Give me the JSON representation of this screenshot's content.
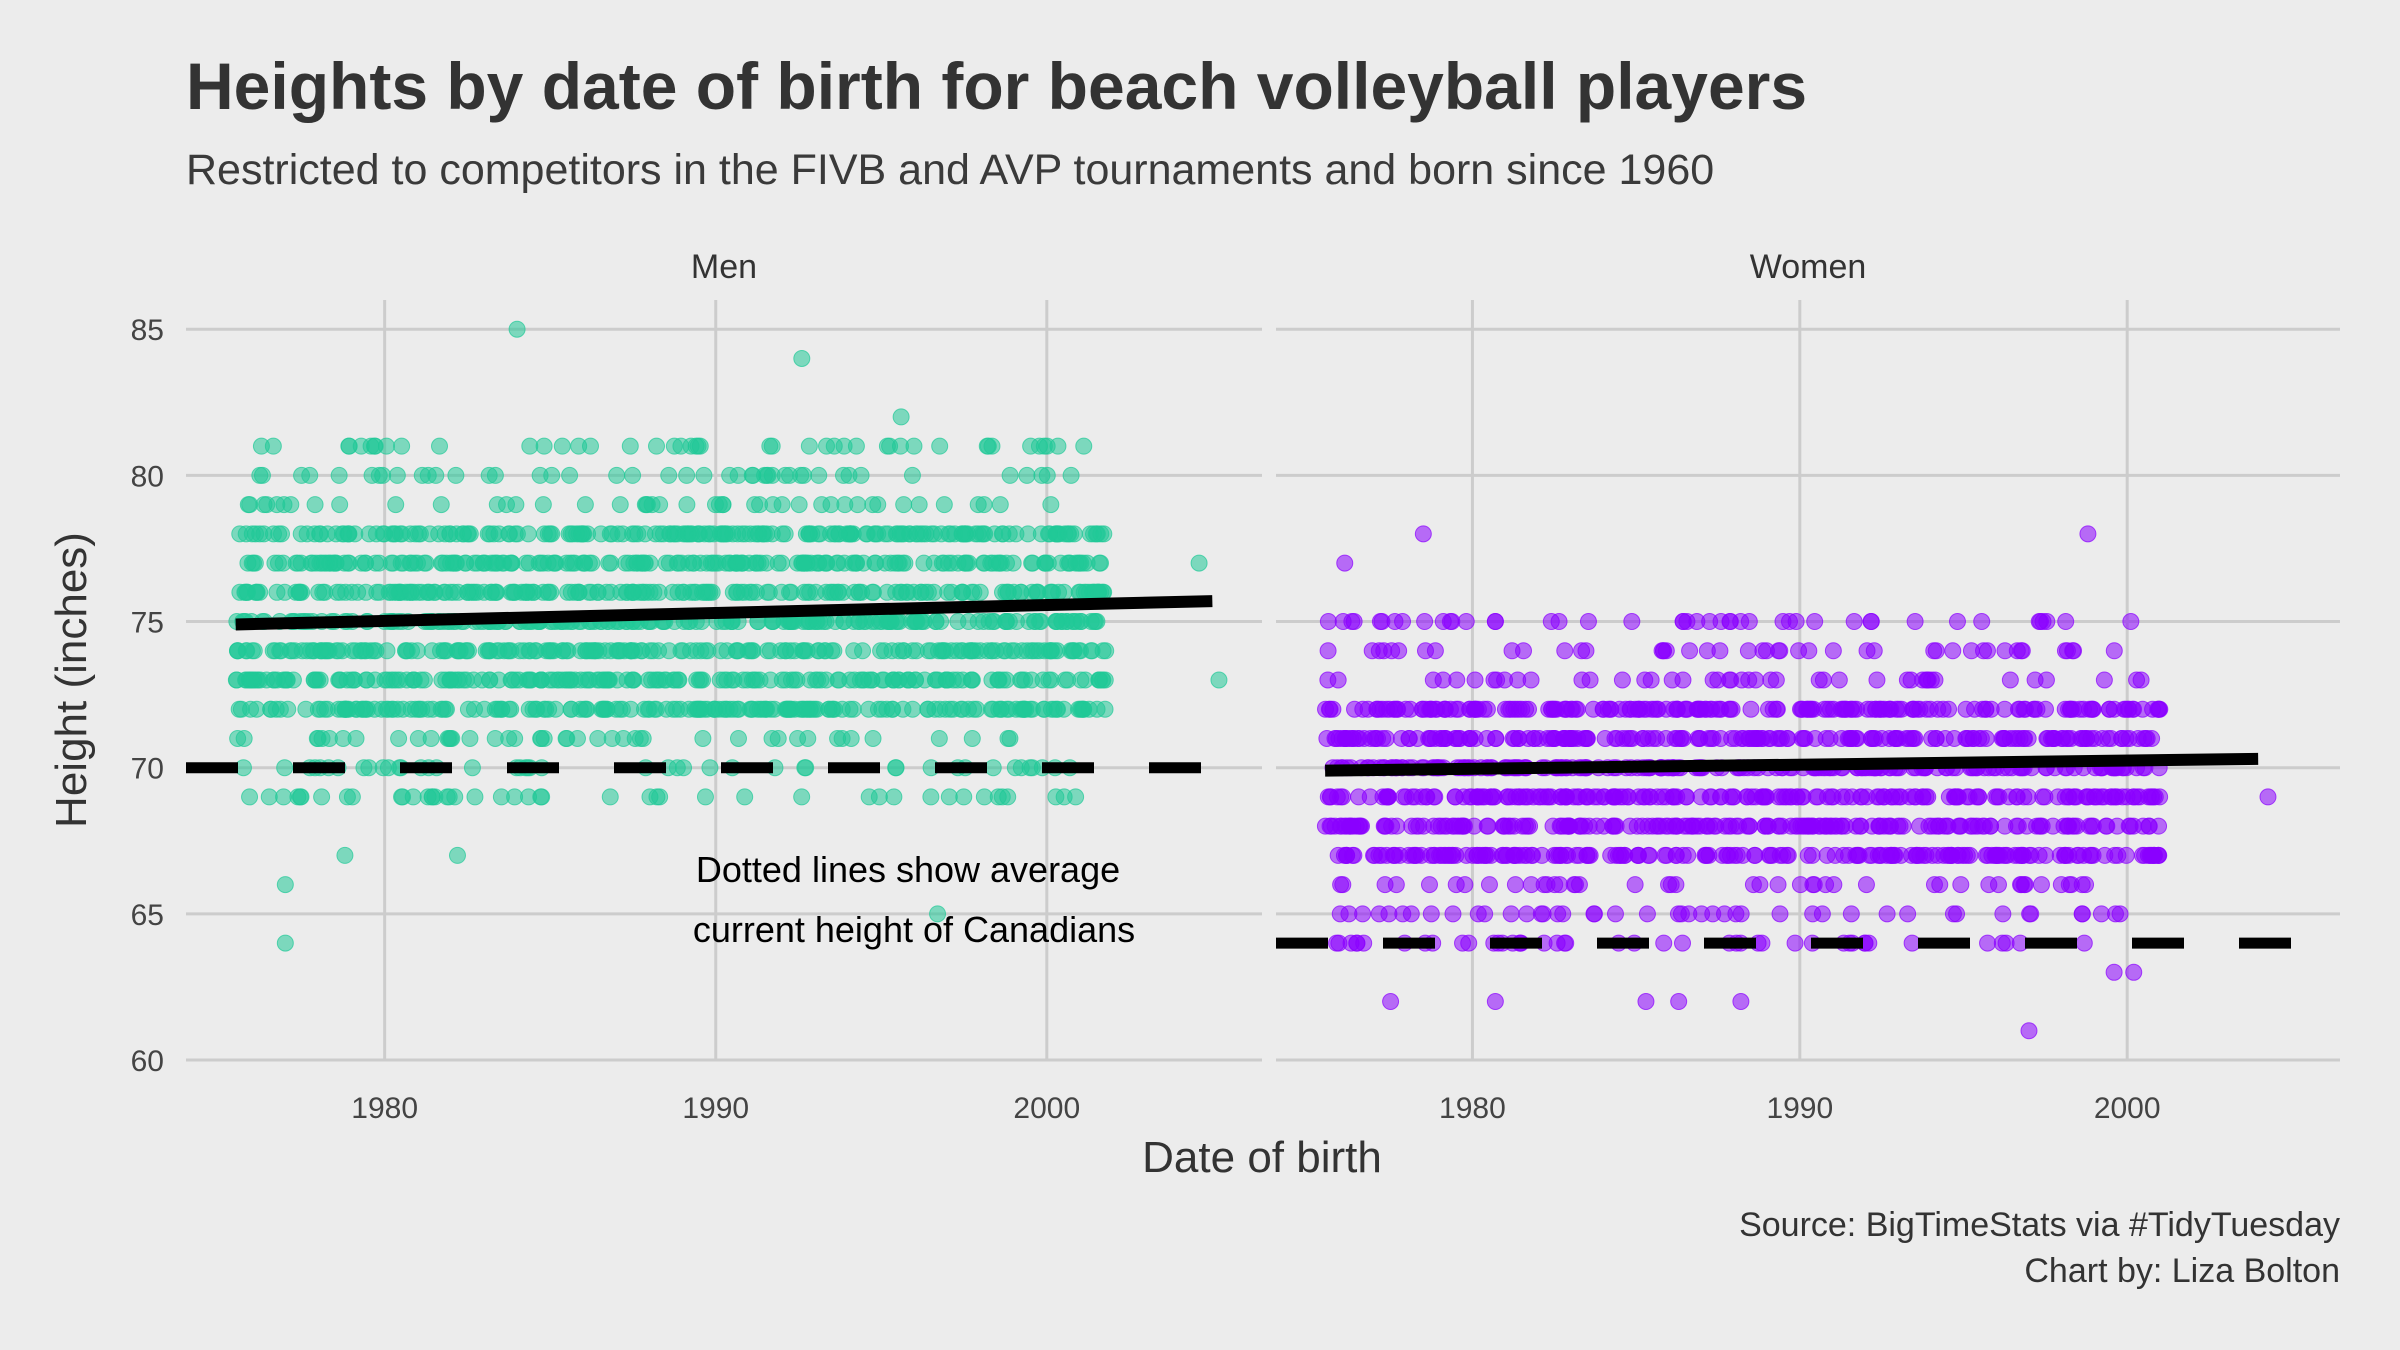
{
  "title": "Heights by date of birth for beach volleyball players",
  "subtitle": "Restricted to competitors in the FIVB and AVP tournaments and born since 1960",
  "caption_line1": "Source: BigTimeStats via #TidyTuesday",
  "caption_line2": "Chart by: Liza Bolton",
  "annotation_line1": "Dotted lines show average",
  "annotation_line2": "current height of Canadians",
  "colors": {
    "men": "#20c997",
    "women": "#8a00ff",
    "trend": "#000000",
    "grid": "#cccccc",
    "background": "#ececec"
  },
  "chart_data": {
    "type": "scatter",
    "xlabel": "Date of birth",
    "ylabel": "Height (inches)",
    "xlim": [
      1974,
      2006.5
    ],
    "ylim": [
      60,
      86
    ],
    "x_ticks": [
      1980,
      1990,
      2000
    ],
    "y_ticks": [
      60,
      65,
      70,
      75,
      80,
      85
    ],
    "grid": true,
    "panels": [
      {
        "name": "Men",
        "color": "#20c997",
        "reference_height": 70,
        "trend": {
          "x": [
            1975.5,
            2005
          ],
          "y": [
            74.9,
            75.7
          ]
        },
        "points": {
          "x_range": [
            1975.5,
            2005.3
          ],
          "core_heights": [
            72,
            73,
            74,
            75,
            76,
            77,
            78
          ],
          "fringe_heights": [
            69,
            70,
            71,
            79,
            80,
            81
          ],
          "outliers": [
            [
              1977,
              64
            ],
            [
              1977,
              66
            ],
            [
              1984,
              85
            ],
            [
              1992.6,
              84
            ],
            [
              1996.7,
              65
            ],
            [
              1982.2,
              67
            ],
            [
              1978.8,
              67
            ],
            [
              2005.2,
              73
            ],
            [
              2004.6,
              77
            ],
            [
              1995.6,
              82
            ]
          ]
        }
      },
      {
        "name": "Women",
        "color": "#8a00ff",
        "reference_height": 64,
        "trend": {
          "x": [
            1975.5,
            2004
          ],
          "y": [
            69.9,
            70.3
          ]
        },
        "points": {
          "x_range": [
            1975.5,
            2004.5
          ],
          "core_heights": [
            67,
            68,
            69,
            70,
            71,
            72
          ],
          "fringe_heights": [
            64,
            65,
            66,
            73,
            74,
            75
          ],
          "outliers": [
            [
              1978.5,
              78
            ],
            [
              1998.8,
              78
            ],
            [
              1997,
              61
            ],
            [
              1977.5,
              62
            ],
            [
              1980.7,
              62
            ],
            [
              1985.3,
              62
            ],
            [
              1986.3,
              62
            ],
            [
              1988.2,
              62
            ],
            [
              2000.2,
              63
            ],
            [
              1999.6,
              63
            ],
            [
              1976.1,
              77
            ],
            [
              2004.3,
              69
            ]
          ]
        }
      }
    ]
  }
}
